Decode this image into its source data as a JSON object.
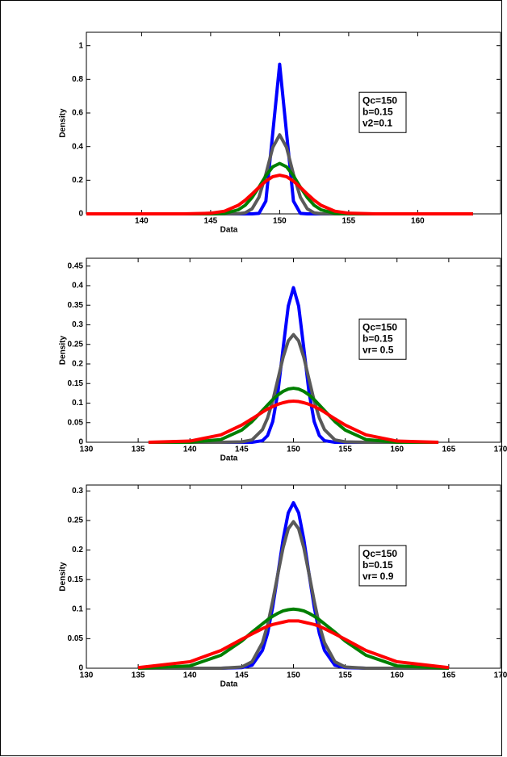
{
  "chart_data": [
    {
      "type": "line",
      "xlabel": "Data",
      "ylabel": "Density",
      "annotation": [
        "Qc=150",
        "b=0.15",
        "v2=0.1"
      ],
      "x": [
        136,
        140,
        143,
        145,
        146,
        147,
        147.5,
        148,
        148.5,
        149,
        149.5,
        150,
        150.5,
        151,
        151.5,
        152,
        152.5,
        153,
        154,
        155,
        157,
        160,
        164
      ],
      "xlim": [
        136,
        166
      ],
      "xticks": [
        140,
        145,
        150,
        155,
        160
      ],
      "ylim": [
        0,
        1.08
      ],
      "yticks": [
        0,
        0.2,
        0.4,
        0.6,
        0.8,
        1
      ],
      "series": [
        {
          "color": "#0000ff",
          "values": [
            0,
            0,
            0,
            0,
            0,
            0,
            0,
            0,
            0.003,
            0.076,
            0.48,
            0.89,
            0.48,
            0.076,
            0.003,
            0,
            0,
            0,
            0,
            0,
            0,
            0,
            0
          ]
        },
        {
          "color": "#5a5a5a",
          "values": [
            0,
            0,
            0,
            0,
            0,
            0.001,
            0.006,
            0.03,
            0.099,
            0.235,
            0.395,
            0.47,
            0.395,
            0.235,
            0.099,
            0.03,
            0.006,
            0.001,
            0,
            0,
            0,
            0,
            0
          ]
        },
        {
          "color": "#007f00",
          "values": [
            0,
            0,
            0,
            0,
            0.003,
            0.024,
            0.051,
            0.097,
            0.159,
            0.226,
            0.28,
            0.3,
            0.28,
            0.226,
            0.159,
            0.097,
            0.051,
            0.024,
            0.003,
            0,
            0,
            0,
            0
          ]
        },
        {
          "color": "#ff0000",
          "values": [
            0,
            0,
            0,
            0.004,
            0.016,
            0.051,
            0.081,
            0.118,
            0.158,
            0.195,
            0.221,
            0.23,
            0.221,
            0.195,
            0.158,
            0.118,
            0.081,
            0.051,
            0.016,
            0.004,
            0,
            0,
            0
          ]
        }
      ]
    },
    {
      "type": "line",
      "xlabel": "Data",
      "ylabel": "Density",
      "annotation": [
        "Qc=150",
        "b=0.15",
        "vr= 0.5"
      ],
      "x": [
        136,
        140,
        143,
        145,
        146,
        147,
        147.5,
        148,
        148.5,
        149,
        149.5,
        150,
        150.5,
        151,
        151.5,
        152,
        152.5,
        153,
        154,
        155,
        157,
        160,
        164
      ],
      "xlim": [
        130,
        170
      ],
      "xticks": [
        130,
        135,
        140,
        145,
        150,
        155,
        160,
        165,
        170
      ],
      "ylim": [
        0,
        0.47
      ],
      "yticks": [
        0,
        0.05,
        0.1,
        0.15,
        0.2,
        0.25,
        0.3,
        0.35,
        0.4,
        0.45
      ],
      "series": [
        {
          "color": "#0000ff",
          "values": [
            0,
            0,
            0,
            0,
            0,
            0.004,
            0.017,
            0.053,
            0.128,
            0.24,
            0.348,
            0.395,
            0.348,
            0.24,
            0.128,
            0.053,
            0.017,
            0.004,
            0,
            0,
            0,
            0,
            0
          ]
        },
        {
          "color": "#5a5a5a",
          "values": [
            0,
            0,
            0,
            0.001,
            0.006,
            0.032,
            0.062,
            0.106,
            0.161,
            0.217,
            0.259,
            0.275,
            0.259,
            0.217,
            0.161,
            0.106,
            0.062,
            0.032,
            0.006,
            0.001,
            0,
            0,
            0
          ]
        },
        {
          "color": "#007f00",
          "values": [
            0,
            0,
            0.007,
            0.031,
            0.053,
            0.081,
            0.095,
            0.109,
            0.121,
            0.13,
            0.136,
            0.138,
            0.136,
            0.13,
            0.121,
            0.109,
            0.095,
            0.081,
            0.053,
            0.031,
            0.007,
            0,
            0
          ]
        },
        {
          "color": "#ff0000",
          "values": [
            0,
            0.003,
            0.019,
            0.044,
            0.06,
            0.077,
            0.085,
            0.091,
            0.097,
            0.101,
            0.104,
            0.105,
            0.104,
            0.101,
            0.097,
            0.091,
            0.085,
            0.077,
            0.06,
            0.044,
            0.019,
            0.003,
            0
          ]
        }
      ]
    },
    {
      "type": "line",
      "xlabel": "Data",
      "ylabel": "Density",
      "annotation": [
        "Qc=150",
        "b=0.15",
        "vr= 0.9"
      ],
      "x": [
        135,
        140,
        143,
        145,
        146,
        147,
        147.5,
        148,
        148.5,
        149,
        149.5,
        150,
        150.5,
        151,
        151.5,
        152,
        152.5,
        153,
        154,
        155,
        157,
        160,
        165
      ],
      "xlim": [
        130,
        170
      ],
      "xticks": [
        130,
        135,
        140,
        145,
        150,
        155,
        160,
        165,
        170
      ],
      "ylim": [
        0,
        0.31
      ],
      "yticks": [
        0,
        0.05,
        0.1,
        0.15,
        0.2,
        0.25,
        0.3
      ],
      "series": [
        {
          "color": "#0000ff",
          "values": [
            0,
            0,
            0,
            0.001,
            0.005,
            0.03,
            0.059,
            0.104,
            0.16,
            0.218,
            0.263,
            0.28,
            0.263,
            0.218,
            0.16,
            0.104,
            0.059,
            0.03,
            0.005,
            0.001,
            0,
            0,
            0
          ]
        },
        {
          "color": "#5a5a5a",
          "values": [
            0,
            0,
            0,
            0.002,
            0.011,
            0.043,
            0.073,
            0.114,
            0.16,
            0.204,
            0.236,
            0.248,
            0.236,
            0.204,
            0.16,
            0.114,
            0.073,
            0.043,
            0.011,
            0.002,
            0,
            0,
            0
          ]
        },
        {
          "color": "#007f00",
          "values": [
            0,
            0.004,
            0.022,
            0.046,
            0.061,
            0.075,
            0.082,
            0.088,
            0.093,
            0.097,
            0.099,
            0.1,
            0.099,
            0.097,
            0.093,
            0.088,
            0.082,
            0.075,
            0.061,
            0.046,
            0.022,
            0.004,
            0
          ]
        },
        {
          "color": "#ff0000",
          "values": [
            0.001,
            0.011,
            0.03,
            0.049,
            0.058,
            0.067,
            0.071,
            0.074,
            0.076,
            0.078,
            0.08,
            0.08,
            0.08,
            0.078,
            0.076,
            0.074,
            0.071,
            0.067,
            0.058,
            0.049,
            0.03,
            0.011,
            0.001
          ]
        }
      ]
    }
  ]
}
